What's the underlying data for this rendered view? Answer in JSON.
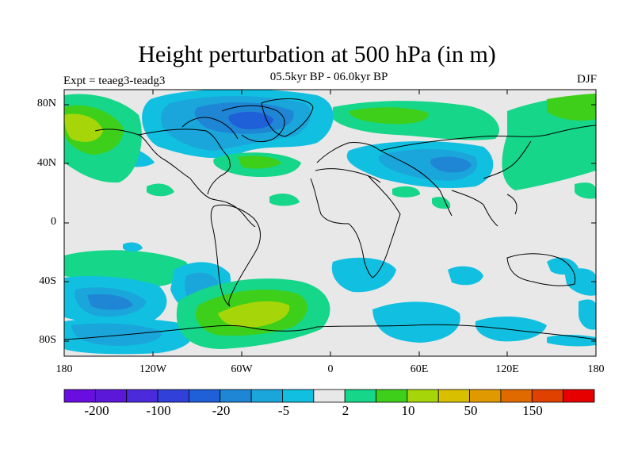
{
  "title": "Height perturbation at 500 hPa (in m)",
  "subtitle": "05.5kyr BP - 06.0kyr BP",
  "experiment": "Expt = teaeg3-teadg3",
  "season": "DJF",
  "map": {
    "projection": "cylindrical equidistant",
    "lat_labels": [
      "80N",
      "40N",
      "0",
      "40S",
      "80S"
    ],
    "lon_labels": [
      "180",
      "120W",
      "60W",
      "0",
      "60E",
      "120E",
      "180"
    ]
  },
  "colorbar": {
    "levels_shown": [
      "-200",
      "-100",
      "-20",
      "-5",
      "2",
      "10",
      "50",
      "150"
    ],
    "colors": [
      "#6a0de0",
      "#5c18d8",
      "#4a2adb",
      "#3040d8",
      "#1f5fd8",
      "#1f86d6",
      "#1aa6db",
      "#11c0e0",
      "#e8e8e8",
      "#16d68a",
      "#3ecf1a",
      "#a6d60a",
      "#d8c000",
      "#e09a00",
      "#e06a00",
      "#e04000",
      "#e60000"
    ]
  }
}
